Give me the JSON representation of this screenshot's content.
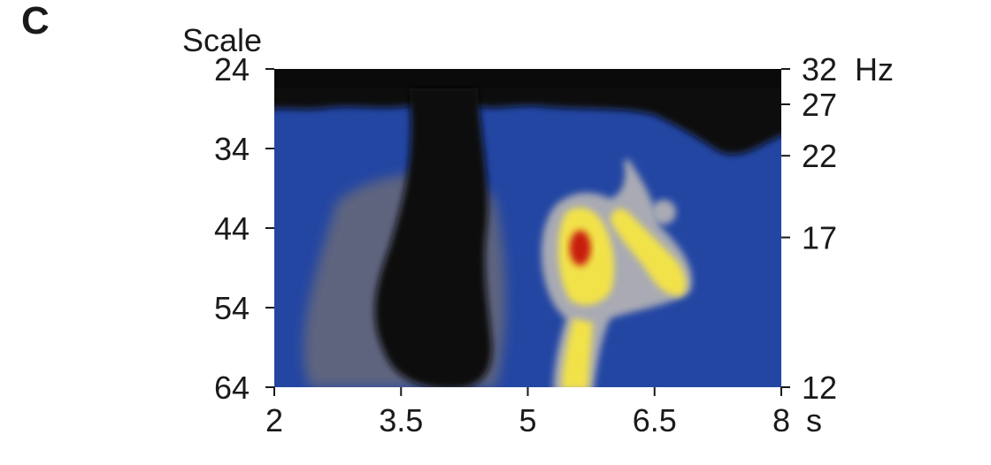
{
  "panel_label": "C",
  "chart_data": {
    "type": "heatmap",
    "title": "",
    "left_axis_label": "Scale",
    "left_ticks": [
      "24",
      "34",
      "44",
      "54",
      "64"
    ],
    "left_tick_values": [
      24,
      34,
      44,
      54,
      64
    ],
    "right_ticks": [
      "32",
      "27",
      "22",
      "17",
      "12"
    ],
    "right_tick_values": [
      32,
      27,
      22,
      17,
      12
    ],
    "right_unit": "Hz",
    "x_ticks": [
      "2",
      "3.5",
      "5",
      "6.5",
      "8"
    ],
    "x_tick_values": [
      2,
      3.5,
      5,
      6.5,
      8
    ],
    "x_unit": "s",
    "xlim": [
      2,
      8
    ],
    "scale_lim": [
      24,
      64
    ],
    "colors": {
      "background": "#2346a3",
      "low": "#0a0a0a",
      "mid_low": "#6b6b78",
      "mid": "#a9aab4",
      "high": "#f2e24a",
      "peak": "#c81e0c"
    },
    "features": [
      {
        "name": "top-dark-band",
        "level": "low"
      },
      {
        "name": "dark-column",
        "level": "low",
        "center_s": 3.9
      },
      {
        "name": "high-power-blob",
        "level": "high",
        "center_s": 5.6,
        "center_scale": 46.5
      },
      {
        "name": "peak",
        "level": "peak",
        "center_s": 5.6,
        "center_scale": 46.5
      }
    ]
  }
}
